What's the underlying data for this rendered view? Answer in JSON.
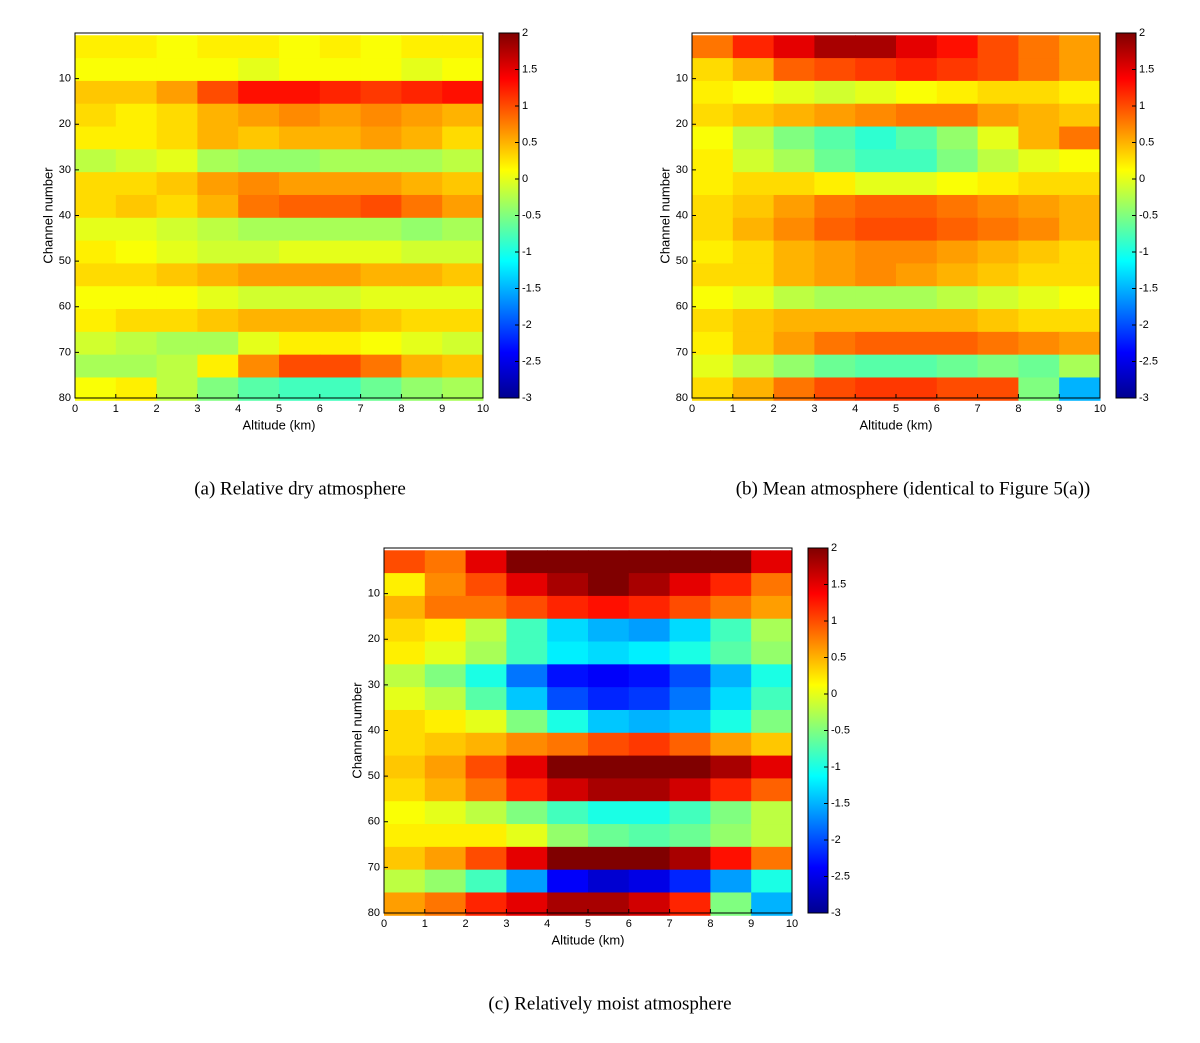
{
  "chart_data": [
    {
      "type": "heatmap",
      "caption": "(a) Relative dry atmosphere",
      "x_label": "Altitude (km)",
      "y_label": "Channel number",
      "xlim": [
        0,
        10
      ],
      "xticks": [
        0,
        1,
        2,
        3,
        4,
        5,
        6,
        7,
        8,
        9,
        10
      ],
      "ylim": [
        80,
        0
      ],
      "yticks": [
        10,
        20,
        30,
        40,
        50,
        60,
        70,
        80
      ],
      "zlim": [
        -3,
        2
      ],
      "zticks": [
        -3,
        -2.5,
        -2,
        -1.5,
        -1,
        -0.5,
        0,
        0.5,
        1,
        1.5,
        2
      ],
      "colormap": "jet",
      "x": [
        0.5,
        1.5,
        2.5,
        3.5,
        4.5,
        5.5,
        6.5,
        7.5,
        8.5,
        9.5
      ],
      "y": [
        3,
        8,
        13,
        18,
        23,
        28,
        33,
        38,
        43,
        48,
        53,
        58,
        63,
        68,
        73,
        78
      ],
      "z": [
        [
          0.2,
          0.2,
          0.1,
          0.2,
          0.2,
          0.1,
          0.2,
          0.1,
          0.2,
          0.2
        ],
        [
          0.1,
          0.1,
          0.1,
          0.1,
          0,
          0.1,
          0.1,
          0.1,
          0,
          0.1
        ],
        [
          0.4,
          0.4,
          0.6,
          1.0,
          1.3,
          1.3,
          1.2,
          1.1,
          1.2,
          1.3
        ],
        [
          0.3,
          0.2,
          0.3,
          0.5,
          0.6,
          0.7,
          0.6,
          0.7,
          0.6,
          0.5
        ],
        [
          0.2,
          0.2,
          0.3,
          0.5,
          0.4,
          0.5,
          0.5,
          0.6,
          0.5,
          0.3
        ],
        [
          -0.2,
          -0.1,
          0,
          -0.3,
          -0.4,
          -0.4,
          -0.3,
          -0.3,
          -0.3,
          -0.2
        ],
        [
          0.3,
          0.3,
          0.4,
          0.6,
          0.7,
          0.6,
          0.6,
          0.6,
          0.5,
          0.4
        ],
        [
          0.3,
          0.4,
          0.3,
          0.5,
          0.8,
          0.9,
          0.9,
          1.0,
          0.8,
          0.6
        ],
        [
          0,
          0,
          -0.1,
          -0.2,
          -0.3,
          -0.3,
          -0.3,
          -0.3,
          -0.4,
          -0.3
        ],
        [
          0.2,
          0.1,
          0,
          -0.1,
          -0.1,
          0,
          0,
          0,
          -0.1,
          -0.1
        ],
        [
          0.3,
          0.3,
          0.4,
          0.5,
          0.6,
          0.6,
          0.6,
          0.5,
          0.5,
          0.4
        ],
        [
          0.1,
          0.1,
          0.1,
          0,
          -0.1,
          -0.1,
          -0.1,
          0,
          0,
          0
        ],
        [
          0.2,
          0.3,
          0.3,
          0.4,
          0.5,
          0.5,
          0.5,
          0.4,
          0.3,
          0.3
        ],
        [
          -0.1,
          -0.2,
          -0.3,
          -0.3,
          0,
          0.2,
          0.2,
          0.1,
          0,
          -0.1
        ],
        [
          -0.3,
          -0.3,
          -0.2,
          0.2,
          0.7,
          1.0,
          1.0,
          0.8,
          0.5,
          0.4
        ],
        [
          0.1,
          0.2,
          -0.2,
          -0.5,
          -0.7,
          -0.8,
          -0.8,
          -0.6,
          -0.4,
          -0.3
        ]
      ]
    },
    {
      "type": "heatmap",
      "caption": "(b) Mean atmosphere (identical to Figure 5(a))",
      "x_label": "Altitude (km)",
      "y_label": "Channel number",
      "xlim": [
        0,
        10
      ],
      "xticks": [
        0,
        1,
        2,
        3,
        4,
        5,
        6,
        7,
        8,
        9,
        10
      ],
      "ylim": [
        80,
        0
      ],
      "yticks": [
        10,
        20,
        30,
        40,
        50,
        60,
        70,
        80
      ],
      "zlim": [
        -3,
        2
      ],
      "zticks": [
        -3,
        -2.5,
        -2,
        -1.5,
        -1,
        -0.5,
        0,
        0.5,
        1,
        1.5,
        2
      ],
      "colormap": "jet",
      "x": [
        0.5,
        1.5,
        2.5,
        3.5,
        4.5,
        5.5,
        6.5,
        7.5,
        8.5,
        9.5
      ],
      "y": [
        3,
        8,
        13,
        18,
        23,
        28,
        33,
        38,
        43,
        48,
        53,
        58,
        63,
        68,
        73,
        78
      ],
      "z": [
        [
          0.8,
          1.2,
          1.5,
          1.8,
          1.8,
          1.5,
          1.3,
          1.0,
          0.8,
          0.6
        ],
        [
          0.3,
          0.5,
          0.9,
          1.0,
          1.1,
          1.2,
          1.1,
          1.0,
          0.8,
          0.6
        ],
        [
          0.2,
          0.1,
          0,
          -0.1,
          0,
          0.1,
          0.2,
          0.3,
          0.3,
          0.2
        ],
        [
          0.3,
          0.4,
          0.5,
          0.6,
          0.7,
          0.8,
          0.8,
          0.6,
          0.5,
          0.4
        ],
        [
          0.1,
          -0.2,
          -0.5,
          -0.7,
          -0.9,
          -0.7,
          -0.4,
          0,
          0.5,
          0.8
        ],
        [
          0.2,
          -0.1,
          -0.3,
          -0.6,
          -0.8,
          -0.8,
          -0.5,
          -0.2,
          0,
          0.1
        ],
        [
          0.2,
          0.3,
          0.3,
          0.2,
          0,
          0,
          0.1,
          0.2,
          0.3,
          0.3
        ],
        [
          0.3,
          0.4,
          0.6,
          0.8,
          0.9,
          0.9,
          0.8,
          0.7,
          0.6,
          0.5
        ],
        [
          0.3,
          0.5,
          0.7,
          0.9,
          1.0,
          1.0,
          0.9,
          0.8,
          0.7,
          0.5
        ],
        [
          0.2,
          0.3,
          0.5,
          0.6,
          0.7,
          0.7,
          0.6,
          0.5,
          0.4,
          0.3
        ],
        [
          0.3,
          0.3,
          0.5,
          0.6,
          0.7,
          0.6,
          0.5,
          0.4,
          0.3,
          0.3
        ],
        [
          0.1,
          0,
          -0.2,
          -0.3,
          -0.3,
          -0.3,
          -0.2,
          -0.1,
          0,
          0.1
        ],
        [
          0.3,
          0.4,
          0.5,
          0.5,
          0.5,
          0.5,
          0.5,
          0.4,
          0.3,
          0.3
        ],
        [
          0.2,
          0.4,
          0.6,
          0.8,
          0.9,
          0.9,
          0.9,
          0.8,
          0.7,
          0.6
        ],
        [
          0,
          -0.2,
          -0.4,
          -0.6,
          -0.7,
          -0.7,
          -0.6,
          -0.5,
          -0.6,
          -0.3
        ],
        [
          0.3,
          0.5,
          0.8,
          1.0,
          1.1,
          1.1,
          1.0,
          1.0,
          -0.5,
          -1.5
        ]
      ]
    },
    {
      "type": "heatmap",
      "caption": "(c) Relatively moist atmosphere",
      "x_label": "Altitude (km)",
      "y_label": "Channel number",
      "xlim": [
        0,
        10
      ],
      "xticks": [
        0,
        1,
        2,
        3,
        4,
        5,
        6,
        7,
        8,
        9,
        10
      ],
      "ylim": [
        80,
        0
      ],
      "yticks": [
        10,
        20,
        30,
        40,
        50,
        60,
        70,
        80
      ],
      "zlim": [
        -3,
        2
      ],
      "zticks": [
        -3,
        -2.5,
        -2,
        -1.5,
        -1,
        -0.5,
        0,
        0.5,
        1,
        1.5,
        2
      ],
      "colormap": "jet",
      "x": [
        0.5,
        1.5,
        2.5,
        3.5,
        4.5,
        5.5,
        6.5,
        7.5,
        8.5,
        9.5
      ],
      "y": [
        3,
        8,
        13,
        18,
        23,
        28,
        33,
        38,
        43,
        48,
        53,
        58,
        63,
        68,
        73,
        78
      ],
      "z": [
        [
          1.0,
          0.8,
          1.5,
          2,
          2,
          2,
          2,
          2,
          2,
          1.5
        ],
        [
          0.2,
          0.7,
          1.0,
          1.5,
          1.8,
          2,
          1.8,
          1.5,
          1.2,
          0.8
        ],
        [
          0.5,
          0.8,
          0.8,
          1.0,
          1.2,
          1.3,
          1.2,
          1.0,
          0.8,
          0.6
        ],
        [
          0.3,
          0.2,
          -0.2,
          -0.8,
          -1.3,
          -1.5,
          -1.6,
          -1.3,
          -0.8,
          -0.3
        ],
        [
          0.2,
          0,
          -0.3,
          -0.8,
          -1.2,
          -1.3,
          -1.2,
          -1.0,
          -0.7,
          -0.4
        ],
        [
          -0.2,
          -0.5,
          -1.0,
          -1.8,
          -2.3,
          -2.4,
          -2.3,
          -2.0,
          -1.5,
          -1.0
        ],
        [
          0,
          -0.2,
          -0.7,
          -1.4,
          -2.0,
          -2.2,
          -2.1,
          -1.8,
          -1.3,
          -0.8
        ],
        [
          0.3,
          0.2,
          0,
          -0.5,
          -1.0,
          -1.4,
          -1.5,
          -1.4,
          -1.0,
          -0.5
        ],
        [
          0.3,
          0.4,
          0.5,
          0.7,
          0.8,
          1.0,
          1.1,
          0.9,
          0.6,
          0.4
        ],
        [
          0.4,
          0.6,
          1.0,
          1.5,
          2,
          2,
          2,
          2,
          1.8,
          1.5
        ],
        [
          0.3,
          0.5,
          0.8,
          1.2,
          1.6,
          1.8,
          1.8,
          1.6,
          1.2,
          0.9
        ],
        [
          0.1,
          0,
          -0.2,
          -0.5,
          -0.8,
          -1.0,
          -1.0,
          -0.8,
          -0.5,
          -0.2
        ],
        [
          0.2,
          0.2,
          0.2,
          0.0,
          -0.4,
          -0.6,
          -0.7,
          -0.6,
          -0.4,
          -0.2
        ],
        [
          0.4,
          0.6,
          1.0,
          1.5,
          2,
          2,
          2,
          1.8,
          1.3,
          0.8
        ],
        [
          -0.2,
          -0.4,
          -0.8,
          -1.6,
          -2.4,
          -2.6,
          -2.5,
          -2.2,
          -1.6,
          -1.0
        ],
        [
          0.6,
          0.8,
          1.2,
          1.5,
          1.8,
          1.8,
          1.6,
          1.2,
          -0.5,
          -1.5
        ]
      ]
    }
  ]
}
